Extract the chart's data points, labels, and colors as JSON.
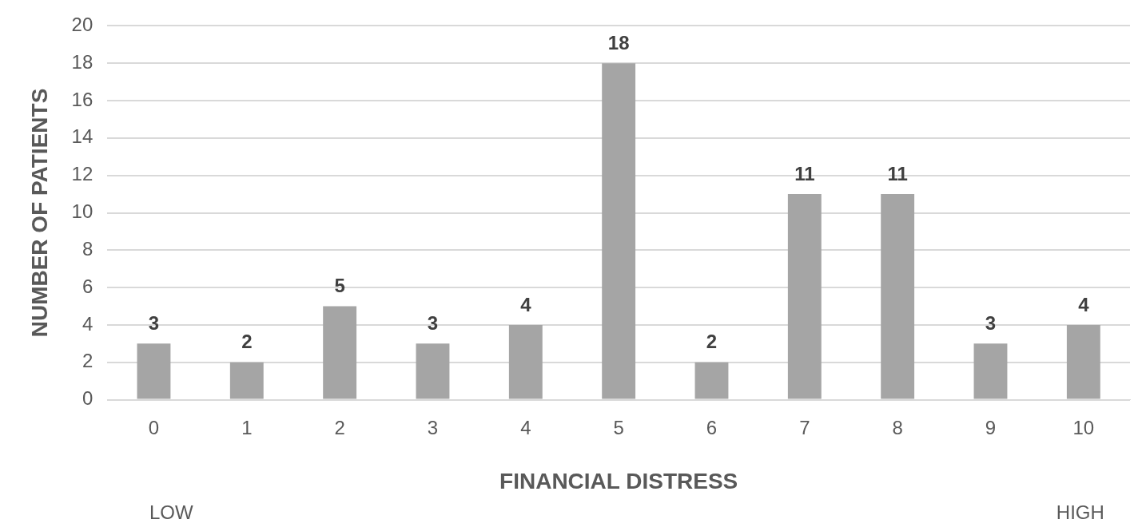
{
  "chart_data": {
    "type": "bar",
    "xlabel": "FINANCIAL DISTRESS",
    "ylabel": "NUMBER OF PATIENTS",
    "categories": [
      "0",
      "1",
      "2",
      "3",
      "4",
      "5",
      "6",
      "7",
      "8",
      "9",
      "10"
    ],
    "values": [
      3,
      2,
      5,
      3,
      4,
      18,
      2,
      11,
      11,
      3,
      4
    ],
    "color": "#a5a5a5",
    "ylim": [
      0,
      20
    ],
    "yticks": [
      0,
      2,
      4,
      6,
      8,
      10,
      12,
      14,
      16,
      18,
      20
    ],
    "grid": "y",
    "data_labels": true,
    "annotations": [
      "LOW",
      "HIGH"
    ]
  }
}
